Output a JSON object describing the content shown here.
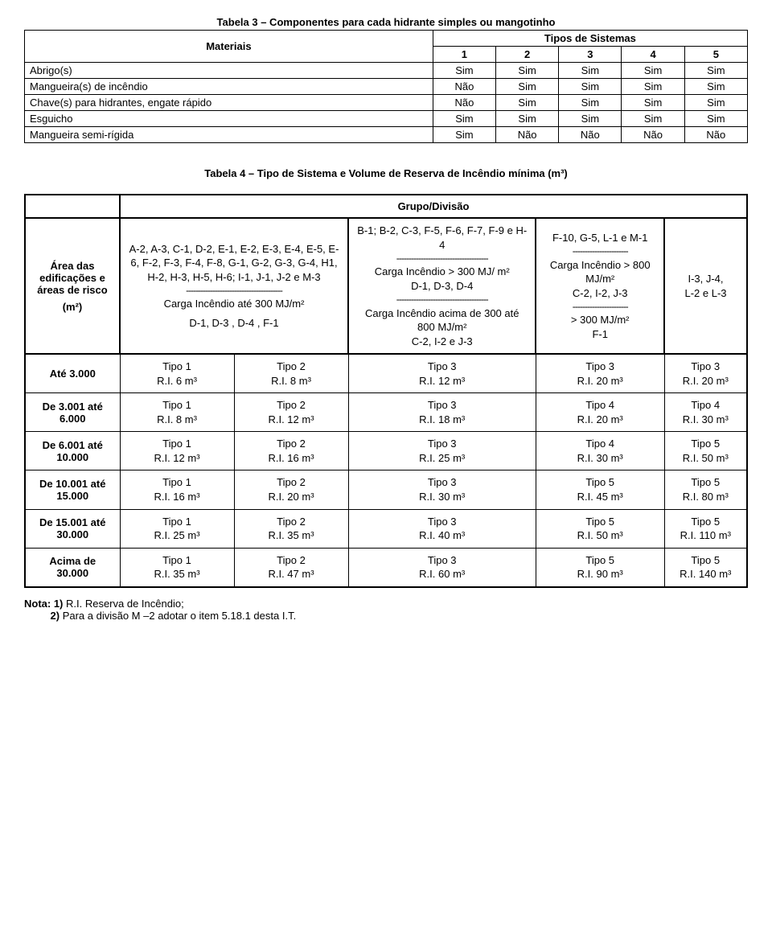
{
  "table3": {
    "title": "Tabela 3 – Componentes para cada hidrante simples ou mangotinho",
    "header_materials": "Materiais",
    "header_tipos": "Tipos de Sistemas",
    "cols": [
      "1",
      "2",
      "3",
      "4",
      "5"
    ],
    "rows": [
      {
        "label": "Abrigo(s)",
        "v": [
          "Sim",
          "Sim",
          "Sim",
          "Sim",
          "Sim"
        ]
      },
      {
        "label": "Mangueira(s) de incêndio",
        "v": [
          "Não",
          "Sim",
          "Sim",
          "Sim",
          "Sim"
        ]
      },
      {
        "label": "Chave(s) para hidrantes, engate rápido",
        "v": [
          "Não",
          "Sim",
          "Sim",
          "Sim",
          "Sim"
        ]
      },
      {
        "label": "Esguicho",
        "v": [
          "Sim",
          "Sim",
          "Sim",
          "Sim",
          "Sim"
        ]
      },
      {
        "label": "Mangueira semi-rígida",
        "v": [
          "Sim",
          "Não",
          "Não",
          "Não",
          "Não"
        ]
      }
    ]
  },
  "table4": {
    "title": "Tabela 4 – Tipo de Sistema e Volume de Reserva de Incêndio mínima (m³)",
    "group_header": "Grupo/Divisão",
    "area_label_1": "Área das edificações e áreas de risco",
    "area_label_2": "(m²)",
    "colA": {
      "line1": "A-2, A-3, C-1, D-2, E-1, E-2, E-3, E-4, E-5, E-6, F-2, F-3, F-4, F-8, G-1, G-2, G-3, G-4, H1, H-2, H-3, H-5, H-6; I-1, J-1, J-2 e M-3",
      "sep": "----------------------------------------",
      "line2": "Carga Incêndio até 300 MJ/m²",
      "line3": "D-1, D-3 , D-4 , F-1"
    },
    "colC": {
      "line1": "B-1; B-2, C-3, F-5, F-6, F-7, F-9 e H-4",
      "sep1": "--------------------------------------",
      "line2": "Carga Incêndio > 300 MJ/ m²",
      "line3": "D-1, D-3, D-4",
      "sep2": "--------------------------------------",
      "line4": "Carga Incêndio acima de 300 até 800 MJ/m²",
      "line5": "C-2, I-2 e J-3"
    },
    "colD": {
      "line1": "F-10,  G-5, L-1 e M-1",
      "sep1": "-----------------------",
      "line2": "Carga Incêndio > 800 MJ/m²",
      "line3": "C-2, I-2, J-3",
      "sep2": "-----------------------",
      "line4": "> 300 MJ/m²",
      "line5": "F-1"
    },
    "colE": {
      "line1": "I-3, J-4,",
      "line2": "L-2 e  L-3"
    },
    "rows": [
      {
        "label": "Até 3.000",
        "a": "Tipo 1",
        "a2": "R.I. 6 m³",
        "b": "Tipo 2",
        "b2": "R.I. 8 m³",
        "c": "Tipo 3",
        "c2": "R.I. 12 m³",
        "d": "Tipo 3",
        "d2": "R.I. 20 m³",
        "e": "Tipo 3",
        "e2": "R.I. 20 m³"
      },
      {
        "label": "De 3.001 até 6.000",
        "a": "Tipo 1",
        "a2": "R.I. 8 m³",
        "b": "Tipo 2",
        "b2": "R.I. 12 m³",
        "c": "Tipo 3",
        "c2": "R.I. 18 m³",
        "d": "Tipo 4",
        "d2": "R.I. 20 m³",
        "e": "Tipo 4",
        "e2": "R.I. 30 m³"
      },
      {
        "label": "De 6.001 até 10.000",
        "a": "Tipo 1",
        "a2": "R.I. 12 m³",
        "b": "Tipo 2",
        "b2": "R.I. 16 m³",
        "c": "Tipo 3",
        "c2": "R.I. 25 m³",
        "d": "Tipo 4",
        "d2": "R.I. 30 m³",
        "e": "Tipo 5",
        "e2": "R.I. 50 m³"
      },
      {
        "label": "De 10.001 até 15.000",
        "a": "Tipo 1",
        "a2": "R.I. 16 m³",
        "b": "Tipo 2",
        "b2": "R.I. 20 m³",
        "c": "Tipo 3",
        "c2": "R.I. 30 m³",
        "d": "Tipo 5",
        "d2": "R.I. 45 m³",
        "e": "Tipo 5",
        "e2": "R.I. 80 m³"
      },
      {
        "label": "De 15.001 até 30.000",
        "a": "Tipo 1",
        "a2": "R.I. 25 m³",
        "b": "Tipo 2",
        "b2": "R.I. 35 m³",
        "c": "Tipo 3",
        "c2": "R.I. 40 m³",
        "d": "Tipo 5",
        "d2": "R.I. 50 m³",
        "e": "Tipo 5",
        "e2": "R.I. 110 m³"
      },
      {
        "label": "Acima de 30.000",
        "a": "Tipo 1",
        "a2": "R.I. 35 m³",
        "b": "Tipo 2",
        "b2": "R.I. 47 m³",
        "c": "Tipo 3",
        "c2": "R.I. 60 m³",
        "d": "Tipo 5",
        "d2": "R.I. 90 m³",
        "e": "Tipo 5",
        "e2": "R.I. 140 m³"
      }
    ]
  },
  "notes": {
    "lead": "Nota: 1)",
    "n1": " R.I. Reserva de Incêndio;",
    "n2_lead": "2)",
    "n2": " Para a divisão M –2 adotar o item 5.18.1 desta I.T."
  }
}
